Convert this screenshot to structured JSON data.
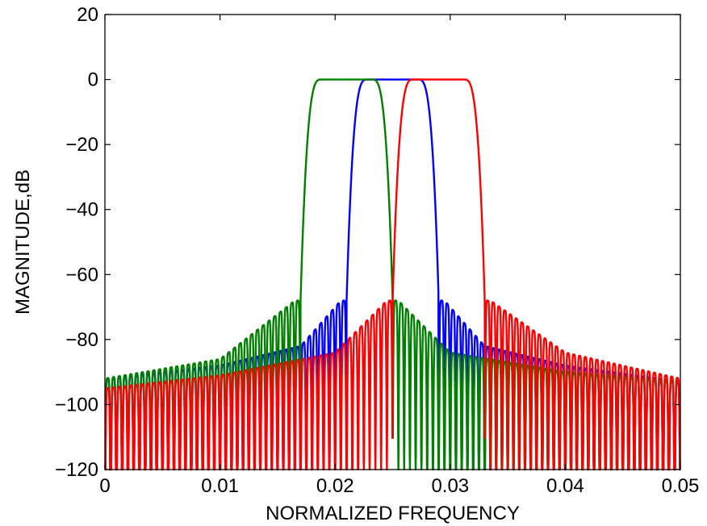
{
  "chart_data": {
    "type": "line",
    "title": "",
    "xlabel": "NORMALIZED FREQUENCY",
    "ylabel": "MAGNITUDE,dB",
    "xlim": [
      0,
      0.05
    ],
    "ylim": [
      -120,
      20
    ],
    "xticks": [
      0,
      0.01,
      0.02,
      0.03,
      0.04,
      0.05
    ],
    "xtick_labels": [
      "0",
      "0.01",
      "0.02",
      "0.03",
      "0.04",
      "0.05"
    ],
    "yticks": [
      -120,
      -100,
      -80,
      -60,
      -40,
      -20,
      0,
      20
    ],
    "ytick_labels": [
      "−120",
      "−100",
      "−80",
      "−60",
      "−40",
      "−20",
      "0",
      "20"
    ],
    "grid": false,
    "legend": "none",
    "series": [
      {
        "color": "#0000ff",
        "passband": [
          0.021,
          0.029
        ],
        "center": 0.025,
        "peak_db": 0,
        "edge_db": -68,
        "floor_db": -95,
        "ripple_period": 0.0005,
        "stopband_envelope": [
          [
            0.0,
            -92
          ],
          [
            0.01,
            -88
          ],
          [
            0.017,
            -82
          ],
          [
            0.0205,
            -68
          ],
          [
            0.0295,
            -68
          ],
          [
            0.033,
            -82
          ],
          [
            0.04,
            -88
          ],
          [
            0.05,
            -93
          ]
        ]
      },
      {
        "color": "#008000",
        "passband": [
          0.017,
          0.025
        ],
        "center": 0.021,
        "peak_db": 0,
        "edge_db": -68,
        "floor_db": -93,
        "ripple_period": 0.0005,
        "stopband_envelope": [
          [
            0.0,
            -92
          ],
          [
            0.01,
            -86
          ],
          [
            0.0165,
            -68
          ],
          [
            0.0255,
            -68
          ],
          [
            0.03,
            -84
          ],
          [
            0.04,
            -90
          ],
          [
            0.05,
            -93
          ]
        ]
      },
      {
        "color": "#ff0000",
        "passband": [
          0.025,
          0.033
        ],
        "center": 0.029,
        "peak_db": 0,
        "edge_db": -68,
        "floor_db": -95,
        "ripple_period": 0.0005,
        "stopband_envelope": [
          [
            0.0,
            -95
          ],
          [
            0.01,
            -91
          ],
          [
            0.02,
            -84
          ],
          [
            0.0245,
            -68
          ],
          [
            0.0335,
            -68
          ],
          [
            0.04,
            -84
          ],
          [
            0.05,
            -92
          ]
        ]
      }
    ]
  }
}
